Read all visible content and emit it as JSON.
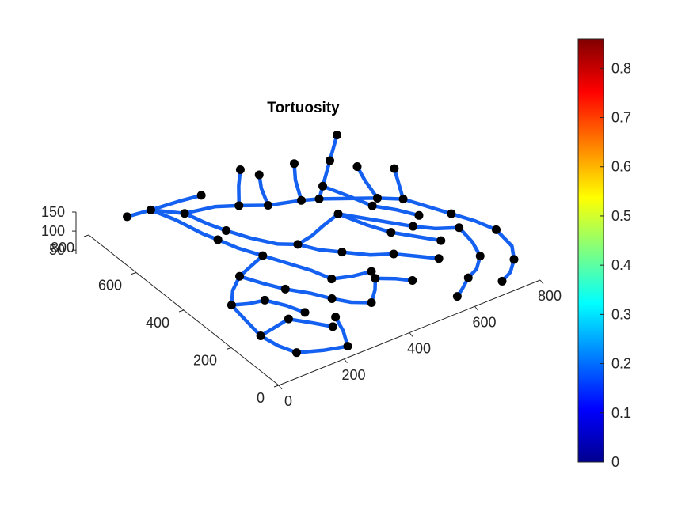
{
  "chart_data": {
    "type": "3d-line-network",
    "title": "Tortuosity",
    "xlabel": "",
    "ylabel": "",
    "zlabel": "",
    "x_ticks": [
      "0",
      "200",
      "400",
      "600",
      "800"
    ],
    "y_ticks": [
      "0",
      "200",
      "400",
      "600",
      "800"
    ],
    "z_ticks": [
      "50",
      "100",
      "150"
    ],
    "xlim": [
      0,
      800
    ],
    "ylim": [
      0,
      800
    ],
    "zlim": [
      40,
      150
    ],
    "colorbar": {
      "colormap": "jet",
      "range": [
        0,
        0.86
      ],
      "ticks": [
        "0",
        "0.1",
        "0.2",
        "0.3",
        "0.4",
        "0.5",
        "0.6",
        "0.7",
        "0.8"
      ],
      "location": "right"
    },
    "segment_color": "#1460f0",
    "node_color": "#000000",
    "segments": [
      [
        [
          125,
          810
        ],
        [
          190,
          800
        ],
        [
          275,
          790
        ],
        [
          330,
          780
        ]
      ],
      [
        [
          190,
          800
        ],
        [
          215,
          730
        ],
        [
          235,
          640
        ],
        [
          250,
          600
        ]
      ],
      [
        [
          190,
          800
        ],
        [
          250,
          740
        ],
        [
          330,
          720
        ],
        [
          380,
          690
        ]
      ],
      [
        [
          250,
          740
        ],
        [
          270,
          670
        ],
        [
          290,
          620
        ]
      ],
      [
        [
          380,
          690
        ],
        [
          430,
          760
        ],
        [
          475,
          815
        ]
      ],
      [
        [
          380,
          690
        ],
        [
          440,
          650
        ],
        [
          520,
          620
        ],
        [
          560,
          600
        ]
      ],
      [
        [
          440,
          650
        ],
        [
          470,
          720
        ],
        [
          500,
          770
        ]
      ],
      [
        [
          520,
          620
        ],
        [
          560,
          700
        ],
        [
          600,
          760
        ]
      ],
      [
        [
          560,
          600
        ],
        [
          600,
          640
        ],
        [
          650,
          690
        ],
        [
          680,
          720
        ]
      ],
      [
        [
          600,
          640
        ],
        [
          630,
          560
        ],
        [
          650,
          500
        ]
      ],
      [
        [
          560,
          600
        ],
        [
          620,
          560
        ],
        [
          680,
          520
        ],
        [
          730,
          480
        ]
      ],
      [
        [
          680,
          520
        ],
        [
          700,
          600
        ],
        [
          720,
          660
        ]
      ],
      [
        [
          730,
          480
        ],
        [
          760,
          540
        ],
        [
          790,
          600
        ]
      ],
      [
        [
          730,
          480
        ],
        [
          760,
          420
        ],
        [
          790,
          360
        ]
      ],
      [
        [
          680,
          720
        ],
        [
          720,
          760
        ],
        [
          760,
          800
        ]
      ],
      [
        [
          650,
          500
        ],
        [
          690,
          450
        ],
        [
          720,
          400
        ]
      ],
      [
        [
          290,
          620
        ],
        [
          320,
          560
        ],
        [
          360,
          500
        ],
        [
          400,
          470
        ]
      ],
      [
        [
          400,
          470
        ],
        [
          430,
          420
        ],
        [
          470,
          380
        ]
      ],
      [
        [
          400,
          470
        ],
        [
          450,
          480
        ],
        [
          500,
          500
        ],
        [
          560,
          520
        ]
      ],
      [
        [
          560,
          520
        ],
        [
          600,
          470
        ],
        [
          640,
          420
        ],
        [
          680,
          370
        ]
      ],
      [
        [
          680,
          370
        ],
        [
          720,
          330
        ],
        [
          770,
          300
        ]
      ],
      [
        [
          560,
          520
        ],
        [
          590,
          440
        ],
        [
          620,
          380
        ]
      ],
      [
        [
          620,
          380
        ],
        [
          660,
          330
        ],
        [
          700,
          280
        ]
      ],
      [
        [
          470,
          380
        ],
        [
          520,
          330
        ],
        [
          570,
          300
        ]
      ],
      [
        [
          570,
          300
        ],
        [
          610,
          260
        ],
        [
          650,
          220
        ]
      ],
      [
        [
          250,
          600
        ],
        [
          270,
          540
        ],
        [
          300,
          480
        ]
      ],
      [
        [
          300,
          480
        ],
        [
          330,
          420
        ],
        [
          360,
          360
        ],
        [
          380,
          300
        ]
      ],
      [
        [
          380,
          300
        ],
        [
          430,
          280
        ],
        [
          480,
          270
        ]
      ],
      [
        [
          300,
          480
        ],
        [
          250,
          460
        ],
        [
          200,
          440
        ]
      ],
      [
        [
          200,
          440
        ],
        [
          150,
          400
        ],
        [
          110,
          350
        ]
      ],
      [
        [
          110,
          350
        ],
        [
          100,
          280
        ],
        [
          90,
          200
        ]
      ],
      [
        [
          90,
          200
        ],
        [
          100,
          140
        ],
        [
          120,
          90
        ]
      ],
      [
        [
          120,
          90
        ],
        [
          180,
          60
        ],
        [
          240,
          40
        ]
      ],
      [
        [
          240,
          40
        ],
        [
          270,
          100
        ],
        [
          290,
          160
        ]
      ],
      [
        [
          200,
          440
        ],
        [
          230,
          380
        ],
        [
          260,
          330
        ]
      ],
      [
        [
          260,
          330
        ],
        [
          300,
          280
        ],
        [
          330,
          230
        ]
      ],
      [
        [
          330,
          230
        ],
        [
          360,
          190
        ],
        [
          400,
          160
        ]
      ],
      [
        [
          400,
          160
        ],
        [
          440,
          200
        ],
        [
          470,
          240
        ]
      ],
      [
        [
          470,
          240
        ],
        [
          510,
          210
        ],
        [
          540,
          180
        ]
      ],
      [
        [
          110,
          350
        ],
        [
          150,
          330
        ],
        [
          190,
          320
        ]
      ],
      [
        [
          190,
          320
        ],
        [
          220,
          270
        ],
        [
          240,
          220
        ]
      ],
      [
        [
          90,
          200
        ],
        [
          140,
          210
        ],
        [
          190,
          220
        ]
      ],
      [
        [
          190,
          220
        ],
        [
          230,
          170
        ],
        [
          260,
          130
        ]
      ],
      [
        [
          770,
          300
        ],
        [
          760,
          230
        ],
        [
          740,
          170
        ]
      ],
      [
        [
          740,
          170
        ],
        [
          700,
          130
        ],
        [
          660,
          110
        ]
      ],
      [
        [
          790,
          360
        ],
        [
          820,
          300
        ],
        [
          840,
          240
        ]
      ],
      [
        [
          840,
          240
        ],
        [
          830,
          160
        ],
        [
          800,
          110
        ]
      ],
      [
        [
          800,
          110
        ],
        [
          760,
          70
        ],
        [
          720,
          50
        ]
      ],
      [
        [
          660,
          110
        ],
        [
          620,
          80
        ],
        [
          590,
          60
        ]
      ]
    ]
  }
}
